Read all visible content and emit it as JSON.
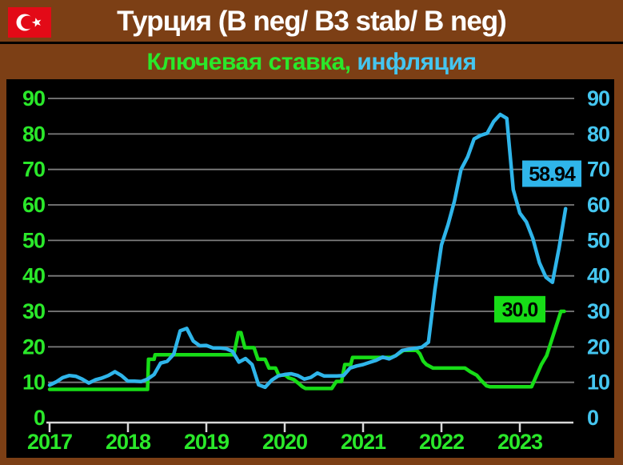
{
  "header": {
    "title": "Турция (B neg/ B3 stab/ B neg)"
  },
  "subtitle": {
    "key_rate_label": "Ключевая ставка,",
    "inflation_label": " инфляция"
  },
  "colors": {
    "page_bg": "#7c3f15",
    "panel_bg": "#000000",
    "title_text": "#ffffff",
    "grid": "#7d7d7d",
    "axis": "#d8d8d8",
    "green": "#17dd17",
    "green_label": "#2ae82a",
    "cyan": "#2fb5ea",
    "cyan_label": "#45c6f0",
    "flag_red": "#e30a17",
    "annotation_text": "#000000"
  },
  "chart_data": {
    "type": "line",
    "title": "Ключевая ставка, инфляция",
    "xlabel": "",
    "ylabel": "",
    "ylim": [
      0,
      90
    ],
    "grid": true,
    "legend_position": "none",
    "y_axis_sides": [
      "left",
      "right"
    ],
    "yticks": [
      0,
      10,
      20,
      30,
      40,
      50,
      60,
      70,
      80,
      90
    ],
    "x_ticks": [
      "2017",
      "2018",
      "2019",
      "2020",
      "2021",
      "2022",
      "2023"
    ],
    "x_unit": "months_since_jan_2017",
    "series": [
      {
        "id": "key-rate",
        "name": "Ключевая ставка",
        "color": "#17dd17",
        "last_value": 30.0,
        "points": [
          [
            0,
            8
          ],
          [
            15,
            8
          ],
          [
            15.15,
            16.5
          ],
          [
            16,
            16.5
          ],
          [
            16.15,
            17.75
          ],
          [
            28.2,
            17.75
          ],
          [
            28.9,
            24
          ],
          [
            29.3,
            24
          ],
          [
            29.9,
            19.75
          ],
          [
            31.3,
            19.75
          ],
          [
            31.9,
            16.5
          ],
          [
            33,
            16.5
          ],
          [
            33.6,
            14
          ],
          [
            34.6,
            14
          ],
          [
            35.1,
            12
          ],
          [
            36.1,
            12
          ],
          [
            36.6,
            11.25
          ],
          [
            37.4,
            10.75
          ],
          [
            38.1,
            9.75
          ],
          [
            38.7,
            8.75
          ],
          [
            39.2,
            8.25
          ],
          [
            43.2,
            8.25
          ],
          [
            43.9,
            10.25
          ],
          [
            44.7,
            10.25
          ],
          [
            45.2,
            15
          ],
          [
            46.1,
            15
          ],
          [
            46.4,
            17
          ],
          [
            52.3,
            17
          ],
          [
            53,
            17.5
          ],
          [
            54.2,
            19
          ],
          [
            56.2,
            19
          ],
          [
            56.7,
            18
          ],
          [
            57.2,
            16
          ],
          [
            57.7,
            15
          ],
          [
            58.7,
            14
          ],
          [
            63.6,
            14
          ],
          [
            64.4,
            13
          ],
          [
            65.4,
            12
          ],
          [
            66.1,
            10.5
          ],
          [
            66.9,
            9
          ],
          [
            67.4,
            8.75
          ],
          [
            73.8,
            8.75
          ],
          [
            75.3,
            15
          ],
          [
            76.1,
            17.5
          ],
          [
            78.3,
            30
          ],
          [
            78.8,
            30
          ]
        ]
      },
      {
        "id": "inflation",
        "name": "инфляция",
        "color": "#2fb5ea",
        "last_value": 58.94,
        "values": [
          9.2,
          10.1,
          11.3,
          11.9,
          11.7,
          10.9,
          9.8,
          10.7,
          11.2,
          11.9,
          13.0,
          11.9,
          10.3,
          10.3,
          10.2,
          10.9,
          12.2,
          15.4,
          15.9,
          17.9,
          24.5,
          25.2,
          21.6,
          20.3,
          20.4,
          19.7,
          19.7,
          19.5,
          18.7,
          15.7,
          16.7,
          15.0,
          9.3,
          8.6,
          10.6,
          11.8,
          12.2,
          12.4,
          11.9,
          10.9,
          11.4,
          12.6,
          11.8,
          11.8,
          11.8,
          11.9,
          14.0,
          14.6,
          15.0,
          15.6,
          16.2,
          17.1,
          16.6,
          17.5,
          19.0,
          19.3,
          19.6,
          19.9,
          21.3,
          36.1,
          48.7,
          54.4,
          61.1,
          70.0,
          73.5,
          78.6,
          79.6,
          80.2,
          83.5,
          85.5,
          84.4,
          64.3,
          57.7,
          55.2,
          50.5,
          43.7,
          39.6,
          38.2,
          47.8,
          58.94
        ]
      }
    ],
    "annotations": [
      {
        "text": "58.94",
        "color": "#2fb5ea",
        "month": 76.9,
        "value": 68.8
      },
      {
        "text": "30.0",
        "color": "#17dd17",
        "month": 72.0,
        "value": 30.6
      }
    ]
  }
}
